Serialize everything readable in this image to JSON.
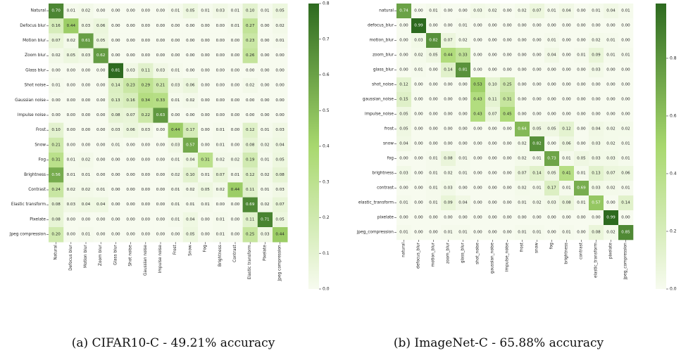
{
  "chart_data": [
    {
      "type": "heatmap",
      "caption": "(a) CIFAR10-C - 49.21% accuracy",
      "rows": [
        "Natural",
        "Defocus blur",
        "Motion blur",
        "Zoom blur",
        "Glass blur",
        "Shot noise",
        "Gaussian noise",
        "Impulse noise",
        "Frost",
        "Snow",
        "Fog",
        "Brightness",
        "Contrast",
        "Elastic transform",
        "Pixelate",
        "Jpeg compression"
      ],
      "columns": [
        "Natural",
        "Defocus blur",
        "Motion blur",
        "Zoom blur",
        "Glass blur",
        "Shot noise",
        "Gaussian noise",
        "Impulse noise",
        "Frost",
        "Snow",
        "Fog",
        "Brightness",
        "Contrast",
        "Elastic transform",
        "Pixelate",
        "Jpeg compression"
      ],
      "values": [
        [
          0.7,
          0.01,
          0.02,
          0.0,
          0.0,
          0.0,
          0.0,
          0.0,
          0.01,
          0.05,
          0.01,
          0.03,
          0.01,
          0.1,
          0.01,
          0.05
        ],
        [
          0.16,
          0.44,
          0.03,
          0.06,
          0.0,
          0.0,
          0.0,
          0.0,
          0.0,
          0.0,
          0.0,
          0.0,
          0.01,
          0.27,
          0.0,
          0.02
        ],
        [
          0.07,
          0.02,
          0.61,
          0.05,
          0.0,
          0.0,
          0.0,
          0.0,
          0.0,
          0.0,
          0.0,
          0.0,
          0.0,
          0.23,
          0.0,
          0.01
        ],
        [
          0.02,
          0.05,
          0.03,
          0.62,
          0.0,
          0.0,
          0.0,
          0.0,
          0.0,
          0.0,
          0.0,
          0.0,
          0.0,
          0.26,
          0.0,
          0.0
        ],
        [
          0.0,
          0.0,
          0.0,
          0.0,
          0.81,
          0.03,
          0.11,
          0.03,
          0.01,
          0.0,
          0.0,
          0.0,
          0.0,
          0.0,
          0.0,
          0.0
        ],
        [
          0.01,
          0.0,
          0.0,
          0.0,
          0.14,
          0.23,
          0.29,
          0.21,
          0.03,
          0.06,
          0.0,
          0.0,
          0.0,
          0.02,
          0.0,
          0.0
        ],
        [
          0.0,
          0.0,
          0.0,
          0.0,
          0.13,
          0.16,
          0.34,
          0.33,
          0.01,
          0.02,
          0.0,
          0.0,
          0.0,
          0.0,
          0.0,
          0.0
        ],
        [
          0.0,
          0.0,
          0.0,
          0.0,
          0.08,
          0.07,
          0.22,
          0.63,
          0.0,
          0.0,
          0.0,
          0.0,
          0.0,
          0.0,
          0.0,
          0.0
        ],
        [
          0.1,
          0.0,
          0.0,
          0.0,
          0.03,
          0.06,
          0.03,
          0.0,
          0.44,
          0.17,
          0.0,
          0.01,
          0.0,
          0.12,
          0.01,
          0.03
        ],
        [
          0.21,
          0.0,
          0.0,
          0.0,
          0.01,
          0.0,
          0.0,
          0.0,
          0.03,
          0.57,
          0.0,
          0.01,
          0.0,
          0.08,
          0.02,
          0.04
        ],
        [
          0.31,
          0.01,
          0.02,
          0.0,
          0.0,
          0.0,
          0.0,
          0.0,
          0.01,
          0.04,
          0.31,
          0.02,
          0.02,
          0.19,
          0.01,
          0.05
        ],
        [
          0.56,
          0.01,
          0.01,
          0.0,
          0.0,
          0.0,
          0.0,
          0.0,
          0.02,
          0.1,
          0.01,
          0.07,
          0.01,
          0.12,
          0.02,
          0.08
        ],
        [
          0.24,
          0.02,
          0.02,
          0.01,
          0.0,
          0.0,
          0.0,
          0.0,
          0.01,
          0.02,
          0.05,
          0.02,
          0.44,
          0.11,
          0.01,
          0.03
        ],
        [
          0.08,
          0.03,
          0.04,
          0.04,
          0.0,
          0.0,
          0.0,
          0.0,
          0.01,
          0.01,
          0.01,
          0.0,
          0.0,
          0.69,
          0.02,
          0.07
        ],
        [
          0.08,
          0.0,
          0.0,
          0.0,
          0.0,
          0.0,
          0.0,
          0.0,
          0.01,
          0.04,
          0.0,
          0.01,
          0.0,
          0.11,
          0.71,
          0.05
        ],
        [
          0.2,
          0.0,
          0.01,
          0.0,
          0.0,
          0.0,
          0.0,
          0.0,
          0.0,
          0.05,
          0.0,
          0.01,
          0.0,
          0.25,
          0.03,
          0.44
        ]
      ],
      "colorbar": {
        "range": [
          0.0,
          0.8
        ],
        "ticks": [
          "0.0",
          "0.1",
          "0.2",
          "0.3",
          "0.4",
          "0.5",
          "0.6",
          "0.7",
          "0.8"
        ]
      }
    },
    {
      "type": "heatmap",
      "caption": "(b) ImageNet-C - 65.88% accuracy",
      "rows": [
        "natural",
        "defocus_blur",
        "motion_blur",
        "zoom_blur",
        "glass_blur",
        "shot_noise",
        "gaussian_noise",
        "impulse_noise",
        "frost",
        "snow",
        "fog",
        "brightness",
        "contrast",
        "elastic_transform",
        "pixelate",
        "jpeg_compression"
      ],
      "columns": [
        "natural",
        "defocus_blur",
        "motion_blur",
        "zoom_blur",
        "glass_blur",
        "shot_noise",
        "gaussian_noise",
        "impulse_noise",
        "frost",
        "snow",
        "fog",
        "brightness",
        "contrast",
        "elastic_transform",
        "pixelate",
        "jpeg_compression"
      ],
      "values": [
        [
          0.74,
          0.0,
          0.01,
          0.0,
          0.0,
          0.03,
          0.02,
          0.0,
          0.02,
          0.07,
          0.01,
          0.04,
          0.0,
          0.01,
          0.04,
          0.01
        ],
        [
          0.0,
          0.99,
          0.0,
          0.0,
          0.01,
          0.0,
          0.0,
          0.0,
          0.0,
          0.0,
          0.0,
          0.0,
          0.0,
          0.0,
          0.0,
          0.0
        ],
        [
          0.0,
          0.03,
          0.82,
          0.07,
          0.02,
          0.0,
          0.0,
          0.0,
          0.0,
          0.0,
          0.01,
          0.0,
          0.0,
          0.02,
          0.01,
          0.0
        ],
        [
          0.0,
          0.02,
          0.05,
          0.44,
          0.33,
          0.0,
          0.0,
          0.0,
          0.0,
          0.0,
          0.04,
          0.0,
          0.01,
          0.09,
          0.01,
          0.01
        ],
        [
          0.0,
          0.01,
          0.0,
          0.14,
          0.81,
          0.0,
          0.0,
          0.0,
          0.0,
          0.0,
          0.0,
          0.0,
          0.0,
          0.03,
          0.0,
          0.0
        ],
        [
          0.12,
          0.0,
          0.0,
          0.0,
          0.0,
          0.53,
          0.1,
          0.25,
          0.0,
          0.0,
          0.0,
          0.0,
          0.0,
          0.0,
          0.0,
          0.0
        ],
        [
          0.15,
          0.0,
          0.0,
          0.0,
          0.0,
          0.43,
          0.11,
          0.31,
          0.0,
          0.0,
          0.0,
          0.0,
          0.0,
          0.0,
          0.0,
          0.0
        ],
        [
          0.05,
          0.0,
          0.0,
          0.0,
          0.0,
          0.43,
          0.07,
          0.45,
          0.0,
          0.0,
          0.0,
          0.0,
          0.0,
          0.0,
          0.0,
          0.0
        ],
        [
          0.05,
          0.0,
          0.0,
          0.0,
          0.0,
          0.0,
          0.0,
          0.0,
          0.64,
          0.05,
          0.05,
          0.12,
          0.0,
          0.04,
          0.02,
          0.02
        ],
        [
          0.04,
          0.0,
          0.0,
          0.0,
          0.0,
          0.0,
          0.0,
          0.0,
          0.02,
          0.82,
          0.0,
          0.06,
          0.0,
          0.03,
          0.02,
          0.01
        ],
        [
          0.0,
          0.0,
          0.01,
          0.08,
          0.01,
          0.0,
          0.0,
          0.0,
          0.02,
          0.01,
          0.73,
          0.01,
          0.05,
          0.03,
          0.03,
          0.01
        ],
        [
          0.03,
          0.0,
          0.01,
          0.02,
          0.01,
          0.0,
          0.0,
          0.0,
          0.07,
          0.14,
          0.05,
          0.41,
          0.01,
          0.13,
          0.07,
          0.06
        ],
        [
          0.0,
          0.0,
          0.01,
          0.03,
          0.0,
          0.0,
          0.0,
          0.0,
          0.02,
          0.01,
          0.17,
          0.01,
          0.69,
          0.03,
          0.02,
          0.01
        ],
        [
          0.01,
          0.0,
          0.01,
          0.09,
          0.04,
          0.0,
          0.0,
          0.0,
          0.01,
          0.02,
          0.03,
          0.08,
          0.01,
          0.57,
          0.0,
          0.14
        ],
        [
          0.0,
          0.0,
          0.0,
          0.0,
          0.0,
          0.0,
          0.0,
          0.0,
          0.0,
          0.0,
          0.0,
          0.0,
          0.0,
          0.0,
          0.99,
          0.0
        ],
        [
          0.01,
          0.0,
          0.0,
          0.01,
          0.01,
          0.0,
          0.0,
          0.0,
          0.01,
          0.01,
          0.0,
          0.01,
          0.0,
          0.08,
          0.02,
          0.85
        ]
      ],
      "colorbar": {
        "range": [
          0.0,
          0.99
        ],
        "ticks": [
          "0.0",
          "0.2",
          "0.4",
          "0.6",
          "0.8"
        ]
      }
    }
  ],
  "colors": {
    "low": "#f7fbef",
    "mid": "#a8d86e",
    "high": "#2d6a1f"
  }
}
